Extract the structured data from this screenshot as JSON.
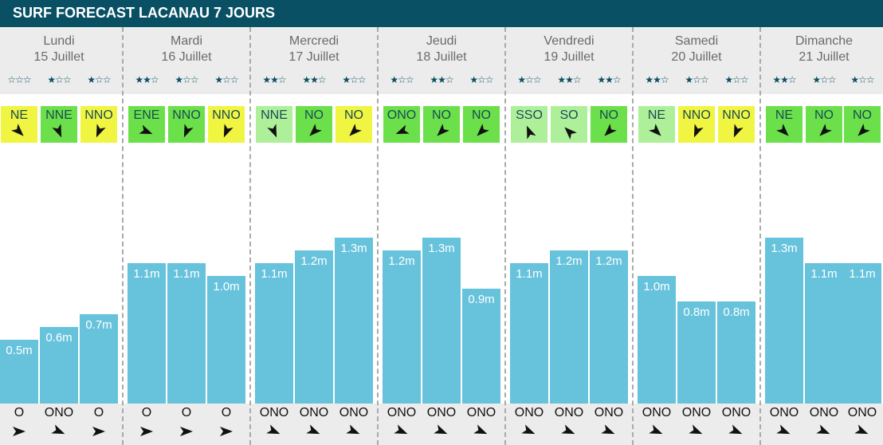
{
  "header": {
    "title": "SURF FORECAST LACANAU 7 JOURS"
  },
  "colors": {
    "title_bg": "#0a5064",
    "band_bg": "#ececec",
    "wave_bar": "#67c3dc",
    "star": "#0a5064",
    "wind_light_green": "#aef09a",
    "wind_green": "#6ce04b",
    "wind_yellow": "#f0f542"
  },
  "chart_data": {
    "type": "bar",
    "title": "SURF FORECAST LACANAU 7 JOURS",
    "xlabel": "",
    "ylabel": "",
    "unit": "m",
    "ylim": [
      0,
      1.6
    ],
    "grid": false,
    "days": [
      {
        "name": "Lundi",
        "date": "15 Juillet",
        "slots": [
          {
            "stars": 0,
            "wind_dir": "NE",
            "wind_color": "#f0f542",
            "wind_rot": -45,
            "wave": 0.5,
            "wave_label": "0.5m",
            "swell_dir": "O",
            "swell_rot": 0
          },
          {
            "stars": 1,
            "wind_dir": "NNE",
            "wind_color": "#6ce04b",
            "wind_rot": -23,
            "wave": 0.6,
            "wave_label": "0.6m",
            "swell_dir": "ONO",
            "swell_rot": 23
          },
          {
            "stars": 1,
            "wind_dir": "NNO",
            "wind_color": "#f0f542",
            "wind_rot": 23,
            "wave": 0.7,
            "wave_label": "0.7m",
            "swell_dir": "O",
            "swell_rot": 0
          }
        ]
      },
      {
        "name": "Mardi",
        "date": "16 Juillet",
        "slots": [
          {
            "stars": 2,
            "wind_dir": "ENE",
            "wind_color": "#6ce04b",
            "wind_rot": -68,
            "wave": 1.1,
            "wave_label": "1.1m",
            "swell_dir": "O",
            "swell_rot": 0
          },
          {
            "stars": 1,
            "wind_dir": "NNO",
            "wind_color": "#6ce04b",
            "wind_rot": 23,
            "wave": 1.1,
            "wave_label": "1.1m",
            "swell_dir": "O",
            "swell_rot": 0
          },
          {
            "stars": 1,
            "wind_dir": "NNO",
            "wind_color": "#f0f542",
            "wind_rot": 23,
            "wave": 1.0,
            "wave_label": "1.0m",
            "swell_dir": "O",
            "swell_rot": 0
          }
        ]
      },
      {
        "name": "Mercredi",
        "date": "17 Juillet",
        "slots": [
          {
            "stars": 2,
            "wind_dir": "NNE",
            "wind_color": "#aef09a",
            "wind_rot": -23,
            "wave": 1.1,
            "wave_label": "1.1m",
            "swell_dir": "ONO",
            "swell_rot": 23
          },
          {
            "stars": 2,
            "wind_dir": "NO",
            "wind_color": "#6ce04b",
            "wind_rot": 45,
            "wave": 1.2,
            "wave_label": "1.2m",
            "swell_dir": "ONO",
            "swell_rot": 23
          },
          {
            "stars": 1,
            "wind_dir": "NO",
            "wind_color": "#f0f542",
            "wind_rot": 45,
            "wave": 1.3,
            "wave_label": "1.3m",
            "swell_dir": "ONO",
            "swell_rot": 23
          }
        ]
      },
      {
        "name": "Jeudi",
        "date": "18 Juillet",
        "slots": [
          {
            "stars": 1,
            "wind_dir": "ONO",
            "wind_color": "#6ce04b",
            "wind_rot": 68,
            "wave": 1.2,
            "wave_label": "1.2m",
            "swell_dir": "ONO",
            "swell_rot": 23
          },
          {
            "stars": 2,
            "wind_dir": "NO",
            "wind_color": "#6ce04b",
            "wind_rot": 45,
            "wave": 1.3,
            "wave_label": "1.3m",
            "swell_dir": "ONO",
            "swell_rot": 23
          },
          {
            "stars": 1,
            "wind_dir": "NO",
            "wind_color": "#6ce04b",
            "wind_rot": 45,
            "wave": 0.9,
            "wave_label": "0.9m",
            "swell_dir": "ONO",
            "swell_rot": 23
          }
        ]
      },
      {
        "name": "Vendredi",
        "date": "19 Juillet",
        "slots": [
          {
            "stars": 1,
            "wind_dir": "SSO",
            "wind_color": "#aef09a",
            "wind_rot": 158,
            "wave": 1.1,
            "wave_label": "1.1m",
            "swell_dir": "ONO",
            "swell_rot": 23
          },
          {
            "stars": 2,
            "wind_dir": "SO",
            "wind_color": "#aef09a",
            "wind_rot": 135,
            "wave": 1.2,
            "wave_label": "1.2m",
            "swell_dir": "ONO",
            "swell_rot": 23
          },
          {
            "stars": 2,
            "wind_dir": "NO",
            "wind_color": "#6ce04b",
            "wind_rot": 45,
            "wave": 1.2,
            "wave_label": "1.2m",
            "swell_dir": "ONO",
            "swell_rot": 23
          }
        ]
      },
      {
        "name": "Samedi",
        "date": "20 Juillet",
        "slots": [
          {
            "stars": 2,
            "wind_dir": "NE",
            "wind_color": "#aef09a",
            "wind_rot": -45,
            "wave": 1.0,
            "wave_label": "1.0m",
            "swell_dir": "ONO",
            "swell_rot": 23
          },
          {
            "stars": 1,
            "wind_dir": "NNO",
            "wind_color": "#f0f542",
            "wind_rot": 23,
            "wave": 0.8,
            "wave_label": "0.8m",
            "swell_dir": "ONO",
            "swell_rot": 23
          },
          {
            "stars": 1,
            "wind_dir": "NNO",
            "wind_color": "#f0f542",
            "wind_rot": 23,
            "wave": 0.8,
            "wave_label": "0.8m",
            "swell_dir": "ONO",
            "swell_rot": 23
          }
        ]
      },
      {
        "name": "Dimanche",
        "date": "21 Juillet",
        "slots": [
          {
            "stars": 2,
            "wind_dir": "NE",
            "wind_color": "#6ce04b",
            "wind_rot": -45,
            "wave": 1.3,
            "wave_label": "1.3m",
            "swell_dir": "ONO",
            "swell_rot": 23
          },
          {
            "stars": 1,
            "wind_dir": "NO",
            "wind_color": "#6ce04b",
            "wind_rot": 45,
            "wave": 1.1,
            "wave_label": "1.1m",
            "swell_dir": "ONO",
            "swell_rot": 23
          },
          {
            "stars": 1,
            "wind_dir": "NO",
            "wind_color": "#6ce04b",
            "wind_rot": 45,
            "wave": 1.1,
            "wave_label": "1.1m",
            "swell_dir": "ONO",
            "swell_rot": 23
          }
        ]
      }
    ]
  }
}
